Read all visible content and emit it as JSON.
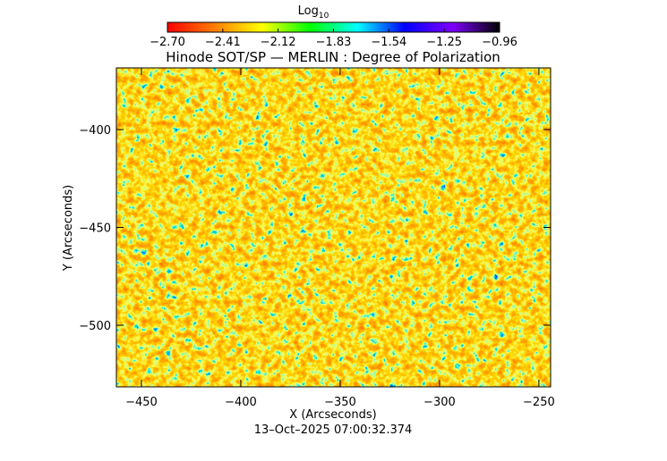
{
  "chart_data": {
    "type": "image",
    "title": "Hinode SOT/SP — MERLIN : Degree of Polarization",
    "xlabel": "X (Arcseconds)",
    "ylabel": "Y (Arcseconds)",
    "footer": "13–Oct–2025 07:00:32.374",
    "colorbar_label": "Log",
    "colorbar_label_sub": "10",
    "colormap": [
      "#ff0000",
      "#ff7f00",
      "#ffff00",
      "#00ff00",
      "#00ffff",
      "#0000ff",
      "#7f00ff",
      "#000000"
    ],
    "clim": [
      -2.7,
      -0.96
    ],
    "cticks": [
      {
        "value": -2.7,
        "label": "−2.70"
      },
      {
        "value": -2.41,
        "label": "−2.41"
      },
      {
        "value": -2.12,
        "label": "−2.12"
      },
      {
        "value": -1.83,
        "label": "−1.83"
      },
      {
        "value": -1.54,
        "label": "−1.54"
      },
      {
        "value": -1.25,
        "label": "−1.25"
      },
      {
        "value": -0.96,
        "label": "−0.96"
      }
    ],
    "xlim": [
      -462.6,
      -244.1
    ],
    "ylim": [
      -531.5,
      -368.5
    ],
    "xticks": [
      {
        "value": -450,
        "label": "−450"
      },
      {
        "value": -400,
        "label": "−400"
      },
      {
        "value": -350,
        "label": "−350"
      },
      {
        "value": -300,
        "label": "−300"
      },
      {
        "value": -250,
        "label": "−250"
      }
    ],
    "yticks": [
      {
        "value": -400,
        "label": "−400"
      },
      {
        "value": -450,
        "label": "−450"
      },
      {
        "value": -500,
        "label": "−500"
      }
    ]
  }
}
